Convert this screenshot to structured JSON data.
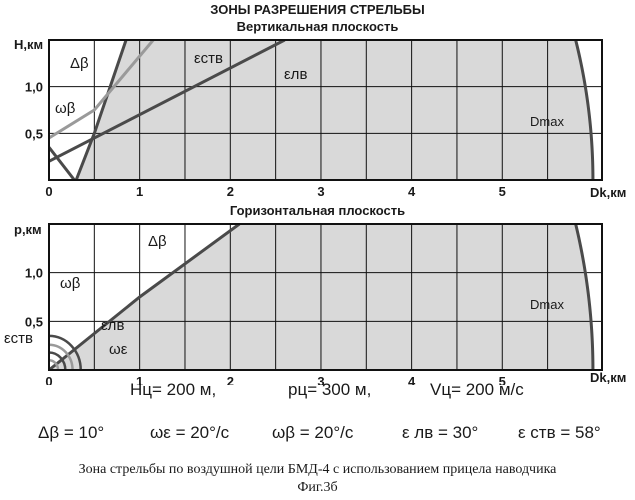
{
  "figure": {
    "title": "ЗОНЫ РАЗРЕШЕНИЯ СТРЕЛЬБЫ",
    "caption": "Зона стрельбы по воздушной цели БМД-4 с использованием прицела наводчика",
    "fig_label": "Фиг.3б"
  },
  "params_row1": {
    "h": "Hц= 200 м,",
    "p": "pц= 300 м,",
    "v": "Vц= 200 м/с"
  },
  "params_row2": {
    "dbeta": "Δβ = 10°",
    "weps": "ωε = 20°/с",
    "wbeta": "ωβ = 20°/с",
    "elv": "ε лв = 30°",
    "estv": "ε ств = 58°"
  },
  "colors": {
    "zone_fill": "#d9d9d9",
    "curve_dark": "#4a4a4a",
    "curve_light": "#9a9a9a",
    "grid": "#111111"
  },
  "chart_data": [
    {
      "type": "area",
      "title": "Вертикальная плоскость",
      "xlabel": "Dk,км",
      "ylabel": "H,км",
      "xlim": [
        0,
        6.1
      ],
      "ylim": [
        0,
        1.5
      ],
      "x_ticks": [
        "0",
        "1",
        "2",
        "3",
        "4",
        "5"
      ],
      "y_ticks": [
        "0,5",
        "1,0"
      ],
      "curves": [
        {
          "name": "Δβ",
          "points": [
            [
              0.3,
              0.0
            ],
            [
              0.5,
              0.5
            ],
            [
              0.85,
              1.5
            ]
          ]
        },
        {
          "name": "εств",
          "points": [
            [
              0.0,
              0.45
            ],
            [
              0.5,
              0.75
            ],
            [
              1.15,
              1.5
            ]
          ]
        },
        {
          "name": "εлв",
          "points": [
            [
              0.0,
              0.2
            ],
            [
              2.6,
              1.5
            ]
          ]
        },
        {
          "name": "ωβ",
          "points": [
            [
              0.0,
              0.35
            ],
            [
              0.28,
              0.0
            ]
          ]
        },
        {
          "name": "Dmax",
          "radius": 6.0
        }
      ],
      "annotations": [
        "Δβ",
        "εств",
        "εлв",
        "ωβ",
        "Dmax"
      ]
    },
    {
      "type": "area",
      "title": "Горизонтальная плоскость",
      "xlabel": "Dk,км",
      "ylabel": "p,км",
      "xlim": [
        0,
        6.1
      ],
      "ylim": [
        0,
        1.5
      ],
      "x_ticks": [
        "0",
        "1",
        "2",
        "3",
        "4",
        "5"
      ],
      "y_ticks": [
        "0,5",
        "1,0"
      ],
      "curves": [
        {
          "name": "Δβ",
          "points": [
            [
              0.0,
              0.0
            ],
            [
              1.0,
              0.75
            ],
            [
              2.1,
              1.5
            ]
          ]
        },
        {
          "name": "Dmax",
          "radius": 6.0
        }
      ],
      "annotations": [
        "Δβ",
        "ωβ",
        "εлв",
        "εств",
        "ωε",
        "Dmax"
      ]
    }
  ]
}
